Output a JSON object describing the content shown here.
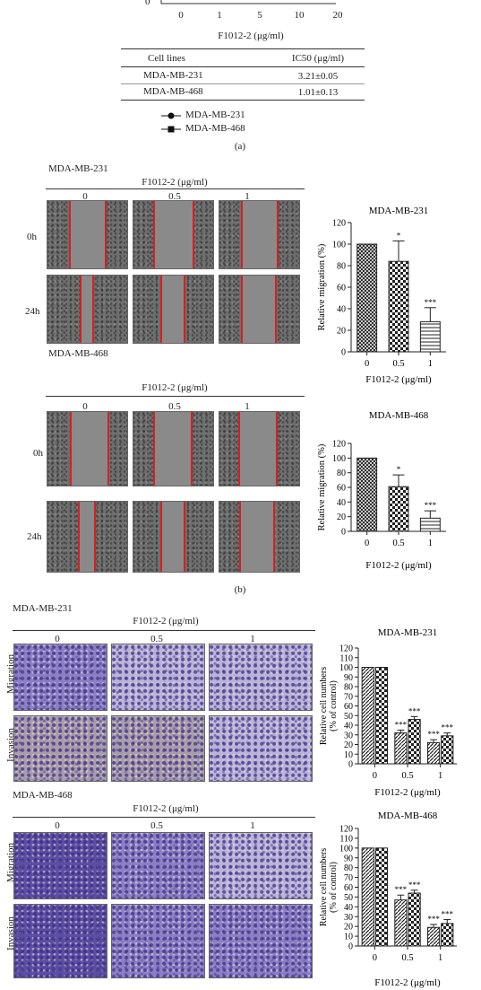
{
  "panel_a": {
    "axis_zero": "0",
    "x_ticks": [
      "0",
      "1",
      "5",
      "10",
      "20"
    ],
    "x_label": "F1012-2 (μg/ml)",
    "table": {
      "headers": [
        "Cell lines",
        "IC50 (μg/ml)"
      ],
      "rows": [
        [
          "MDA-MB-231",
          "3.21±0.05"
        ],
        [
          "MDA-MB-468",
          "1.01±0.13"
        ]
      ]
    },
    "legend": [
      {
        "marker": "circle",
        "label": "MDA-MB-231"
      },
      {
        "marker": "square",
        "label": "MDA-MB-468"
      }
    ],
    "caption": "(a)"
  },
  "panel_b": {
    "blocks": [
      {
        "cell_line": "MDA-MB-231",
        "treatment_label": "F1012-2 (μg/ml)",
        "doses": [
          "0",
          "0.5",
          "1"
        ],
        "rows": [
          "0h",
          "24h"
        ]
      },
      {
        "cell_line": "MDA-MB-468",
        "treatment_label": "F1012-2 (μg/ml)",
        "doses": [
          "0",
          "0.5",
          "1"
        ],
        "rows": [
          "0h",
          "24h"
        ]
      }
    ],
    "caption": "(b)"
  },
  "panel_c": {
    "blocks": [
      {
        "cell_line": "MDA-MB-231",
        "treatment_label": "F1012-2 (μg/ml)",
        "doses": [
          "0",
          "0.5",
          "1"
        ],
        "rows": [
          "Migration",
          "Invasion"
        ]
      },
      {
        "cell_line": "MDA-MB-468",
        "treatment_label": "F1012-2 (μg/ml)",
        "doses": [
          "0",
          "0.5",
          "1"
        ],
        "rows": [
          "Migration",
          "Invasion"
        ]
      }
    ]
  },
  "chart_data": [
    {
      "type": "bar",
      "title": "MDA-MB-231",
      "ylabel": "Relative migration (%)",
      "xlabel": "F1012-2 (μg/ml)",
      "categories": [
        "0",
        "0.5",
        "1"
      ],
      "values": [
        100,
        84,
        28
      ],
      "errors": [
        0,
        19,
        13
      ],
      "sig": [
        "",
        "*",
        "***"
      ],
      "ylim": [
        0,
        120
      ],
      "yticks": [
        0,
        20,
        40,
        60,
        80,
        100,
        120
      ],
      "patterns": [
        "cross",
        "check",
        "hstripe"
      ]
    },
    {
      "type": "bar",
      "title": "MDA-MB-468",
      "ylabel": "Relative migration (%)",
      "xlabel": "F1012-2 (μg/ml)",
      "categories": [
        "0",
        "0.5",
        "1"
      ],
      "values": [
        100,
        61,
        18
      ],
      "errors": [
        0,
        16,
        10
      ],
      "sig": [
        "",
        "*",
        "***"
      ],
      "ylim": [
        0,
        120
      ],
      "yticks": [
        0,
        20,
        40,
        60,
        80,
        100,
        120
      ],
      "patterns": [
        "cross",
        "check",
        "hstripe"
      ]
    },
    {
      "type": "bar",
      "title": "MDA-MB-231",
      "ylabel": "Relative cell numbers",
      "ylabel2": "(% of control)",
      "xlabel": "F1012-2 (μg/ml)",
      "categories": [
        "0",
        "0.5",
        "1"
      ],
      "series": [
        {
          "values": [
            100,
            32,
            22
          ],
          "errors": [
            0,
            3,
            3
          ],
          "sig": [
            "",
            "***",
            "***"
          ]
        },
        {
          "values": [
            100,
            46,
            29
          ],
          "errors": [
            0,
            3,
            3
          ],
          "sig": [
            "",
            "***",
            "***"
          ]
        }
      ],
      "ylim": [
        0,
        120
      ],
      "yticks": [
        0,
        10,
        20,
        30,
        40,
        50,
        60,
        70,
        80,
        90,
        100,
        110,
        120
      ]
    },
    {
      "type": "bar",
      "title": "MDA-MB-468",
      "ylabel": "Relative cell numbers",
      "ylabel2": "(% of control)",
      "xlabel": "F1012-2 (μg/ml)",
      "categories": [
        "0",
        "0.5",
        "1"
      ],
      "series": [
        {
          "values": [
            100,
            47,
            19
          ],
          "errors": [
            0,
            5,
            3
          ],
          "sig": [
            "",
            "***",
            "***"
          ]
        },
        {
          "values": [
            100,
            54,
            23
          ],
          "errors": [
            0,
            3,
            4
          ],
          "sig": [
            "",
            "***",
            "***"
          ]
        }
      ],
      "ylim": [
        0,
        120
      ],
      "yticks": [
        0,
        10,
        20,
        30,
        40,
        50,
        60,
        70,
        80,
        90,
        100,
        110,
        120
      ]
    }
  ]
}
